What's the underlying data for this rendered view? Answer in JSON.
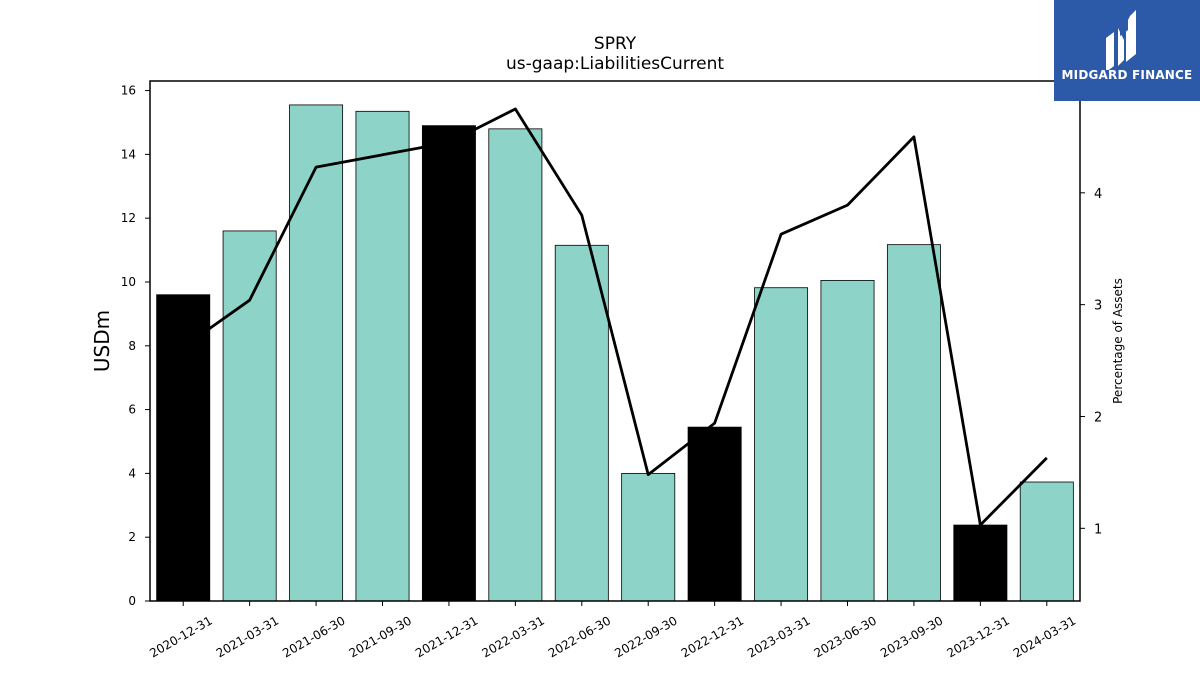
{
  "logo": {
    "text": "MIDGARD FINANCE",
    "icon": "midgard-finance-logo-icon",
    "background": "#2c5aa8"
  },
  "chart_data": {
    "type": "bar",
    "title": "SPRY",
    "subtitle": "us-gaap:LiabilitiesCurrent",
    "ylabel": "USDm",
    "ylabel_right": "Percentage of Assets",
    "ylim": [
      0,
      16.3
    ],
    "ylim_right": [
      0.35,
      5.0
    ],
    "yticks": [
      "0",
      "2",
      "4",
      "6",
      "8",
      "10",
      "12",
      "14",
      "16"
    ],
    "yticks_right": [
      "1",
      "2",
      "3",
      "4"
    ],
    "categories": [
      "2020-12-31",
      "2021-03-31",
      "2021-06-30",
      "2021-09-30",
      "2021-12-31",
      "2022-03-31",
      "2022-06-30",
      "2022-09-30",
      "2022-12-31",
      "2023-03-31",
      "2023-06-30",
      "2023-09-30",
      "2023-12-31",
      "2024-03-31"
    ],
    "series": [
      {
        "type": "bar",
        "axis": "left",
        "values": [
          9.6,
          11.6,
          15.55,
          15.35,
          14.9,
          14.8,
          11.15,
          4.0,
          5.45,
          9.82,
          10.05,
          11.17,
          2.38,
          3.73
        ],
        "colors": [
          "#000000",
          "#8dd3c7",
          "#8dd3c7",
          "#8dd3c7",
          "#000000",
          "#8dd3c7",
          "#8dd3c7",
          "#8dd3c7",
          "#000000",
          "#8dd3c7",
          "#8dd3c7",
          "#8dd3c7",
          "#000000",
          "#8dd3c7"
        ]
      },
      {
        "type": "line",
        "axis": "right",
        "color": "#000000",
        "values": [
          2.62,
          3.04,
          4.23,
          4.34,
          4.45,
          4.75,
          3.8,
          1.48,
          1.94,
          3.63,
          3.89,
          4.5,
          1.03,
          1.63
        ]
      }
    ],
    "grid": false,
    "legend": "none"
  }
}
